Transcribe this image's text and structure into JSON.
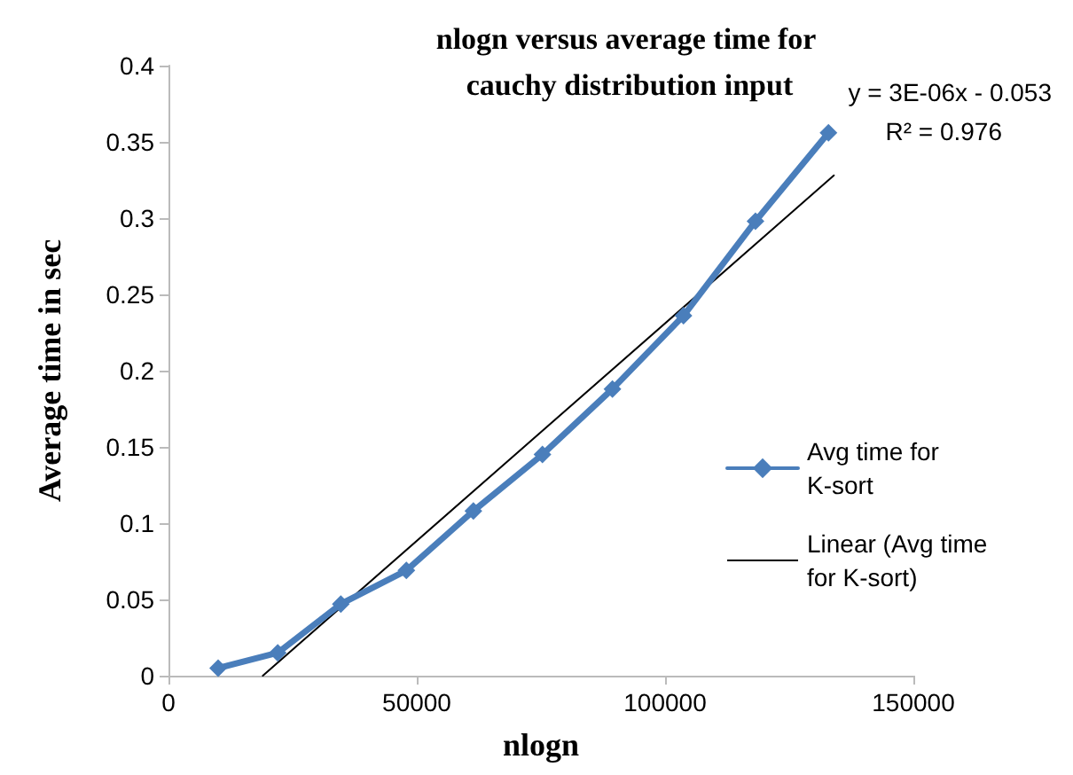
{
  "chart_data": {
    "type": "line",
    "title": "nlogn versus average time for cauchy distribution input",
    "xlabel": "nlogn",
    "ylabel": "Average time in sec",
    "annotations": [
      "y = 3E-06x - 0.053",
      "R² = 0.976"
    ],
    "xlim": [
      0,
      150000
    ],
    "xticks": [
      0,
      50000,
      100000,
      150000
    ],
    "ylim": [
      0,
      0.4
    ],
    "yticks": [
      0,
      0.05,
      0.1,
      0.15,
      0.2,
      0.25,
      0.3,
      0.35,
      0.4
    ],
    "grid": false,
    "legend": "right",
    "marker": "diamond",
    "line_style": "solid",
    "series": [
      {
        "name": "Avg time for K-sort",
        "color": "#4a7ebb",
        "x": [
          10000,
          22000,
          34700,
          47900,
          61400,
          75300,
          89400,
          103700,
          118200,
          132900
        ],
        "values": [
          0.005,
          0.015,
          0.047,
          0.069,
          0.108,
          0.145,
          0.188,
          0.236,
          0.298,
          0.356
        ]
      },
      {
        "name": "Linear (Avg time for K-sort)",
        "type": "line",
        "marker": "none",
        "color": "#000000",
        "x": [
          19000,
          134000
        ],
        "values": [
          0,
          0.328
        ]
      }
    ]
  }
}
